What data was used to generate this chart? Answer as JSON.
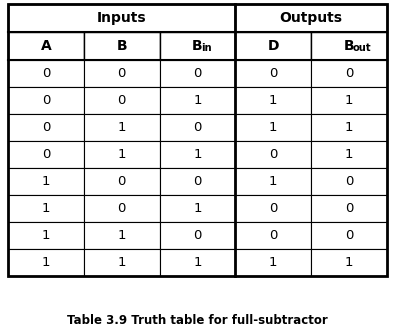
{
  "title": "Table 3.9 Truth table for full-subtractor",
  "inputs_label": "Inputs",
  "outputs_label": "Outputs",
  "rows": [
    [
      0,
      0,
      0,
      0,
      0
    ],
    [
      0,
      0,
      1,
      1,
      1
    ],
    [
      0,
      1,
      0,
      1,
      1
    ],
    [
      0,
      1,
      1,
      0,
      1
    ],
    [
      1,
      0,
      0,
      1,
      0
    ],
    [
      1,
      0,
      1,
      0,
      0
    ],
    [
      1,
      1,
      0,
      0,
      0
    ],
    [
      1,
      1,
      1,
      1,
      1
    ]
  ],
  "bg_color": "#ffffff",
  "border_color": "#000000",
  "text_color": "#000000",
  "title_fontsize": 8.5,
  "group_header_fontsize": 10,
  "col_header_fontsize": 10,
  "cell_fontsize": 9.5,
  "num_data_rows": 8,
  "num_cols": 5,
  "inputs_span": 3,
  "outputs_span": 2
}
